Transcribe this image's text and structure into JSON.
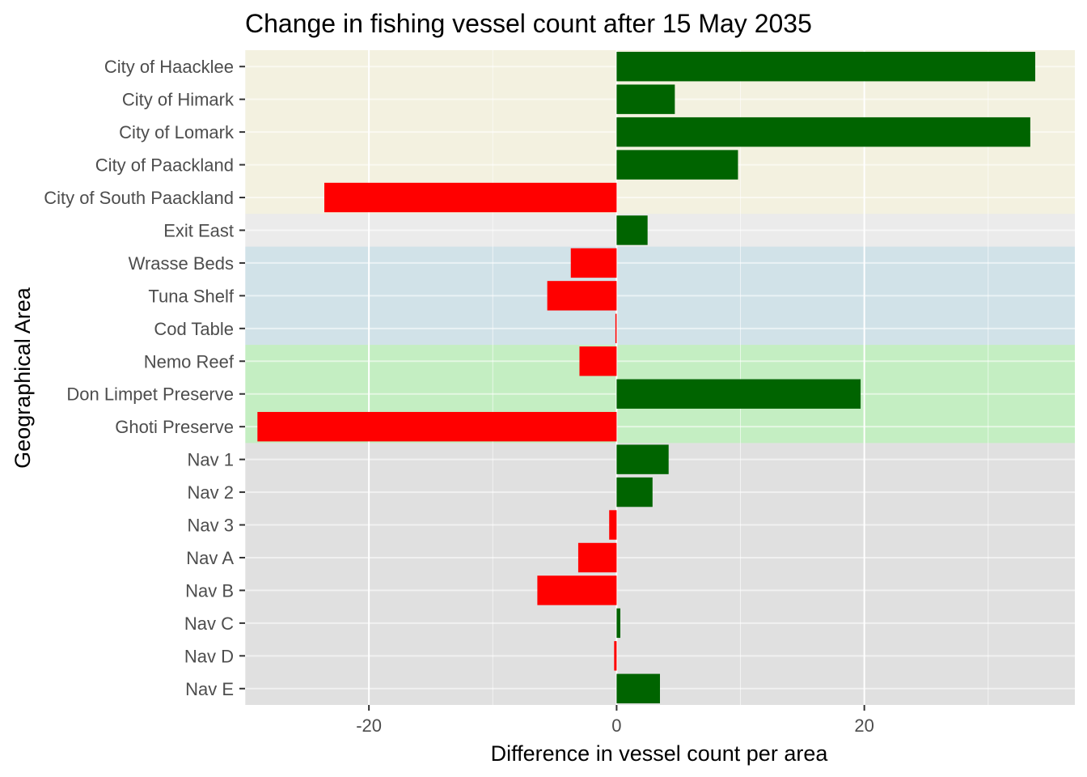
{
  "chart_data": {
    "type": "bar",
    "orientation": "horizontal",
    "title": "Change in fishing vessel count after 15 May 2035",
    "xlabel": "Difference in vessel count per area",
    "ylabel": "Geographical Area",
    "xlim": [
      -30,
      37
    ],
    "x_ticks": [
      -20,
      0,
      20
    ],
    "x_tick_labels": [
      "-20",
      "0",
      "20"
    ],
    "grid": true,
    "colors": {
      "positive": "#006400",
      "negative": "#ff0000",
      "panel_background": "#ebebeb",
      "gridline": "#ffffff",
      "tick_label": "#4d4d4d"
    },
    "region_bands": [
      {
        "from": "City of Haacklee",
        "to": "City of South Paackland",
        "color": "#f5f2de"
      },
      {
        "from": "Wrasse Beds",
        "to": "Cod Table",
        "color": "#cde1e8"
      },
      {
        "from": "Nemo Reef",
        "to": "Ghoti Preserve",
        "color": "#bdefbb"
      },
      {
        "from": "Nav 1",
        "to": "Nav E",
        "color": "#dedede"
      }
    ],
    "categories": [
      "City of Haacklee",
      "City of Himark",
      "City of Lomark",
      "City of Paackland",
      "City of South Paackland",
      "Exit East",
      "Wrasse Beds",
      "Tuna Shelf",
      "Cod Table",
      "Nemo Reef",
      "Don Limpet Preserve",
      "Ghoti Preserve",
      "Nav 1",
      "Nav 2",
      "Nav 3",
      "Nav A",
      "Nav B",
      "Nav C",
      "Nav D",
      "Nav E"
    ],
    "values": [
      33.8,
      4.7,
      33.4,
      9.8,
      -23.6,
      2.5,
      -3.7,
      -5.6,
      -0.1,
      -3.0,
      19.7,
      -29.0,
      4.2,
      2.9,
      -0.6,
      -3.1,
      -6.4,
      0.3,
      -0.2,
      3.5
    ]
  }
}
